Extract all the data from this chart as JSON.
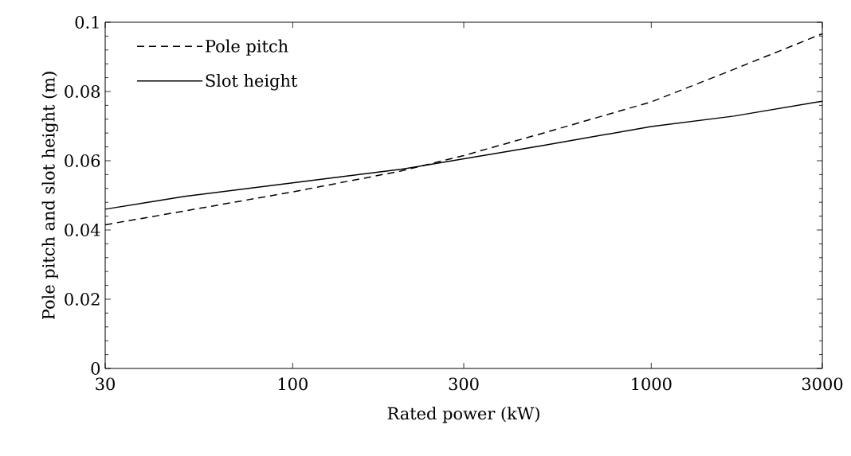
{
  "chart_data": {
    "type": "line",
    "xlabel": "Rated power (kW)",
    "ylabel": "Pole pitch and slot height (m)",
    "log": "x",
    "xlim": [
      30,
      3000
    ],
    "xticks": [
      30,
      100,
      300,
      1000,
      3000
    ],
    "ylim": [
      0,
      0.1
    ],
    "yticks": [
      0,
      0.02,
      0.04,
      0.06,
      0.08,
      0.1
    ],
    "legend": "top left",
    "grid": false,
    "marker": "none",
    "series": [
      {
        "name": "Pole pitch",
        "color": "#000000",
        "line_style": "dashed",
        "x": [
          30,
          50,
          100,
          200,
          300,
          500,
          1000,
          1700,
          3000
        ],
        "values": [
          0.0415,
          0.0455,
          0.051,
          0.057,
          0.0615,
          0.068,
          0.077,
          0.0864,
          0.0967
        ]
      },
      {
        "name": "Slot height",
        "color": "#000000",
        "line_style": "solid",
        "x": [
          30,
          50,
          100,
          200,
          500,
          1000,
          1700,
          3000
        ],
        "values": [
          0.046,
          0.0497,
          0.0536,
          0.0575,
          0.0644,
          0.0699,
          0.0729,
          0.0772
        ]
      }
    ]
  }
}
